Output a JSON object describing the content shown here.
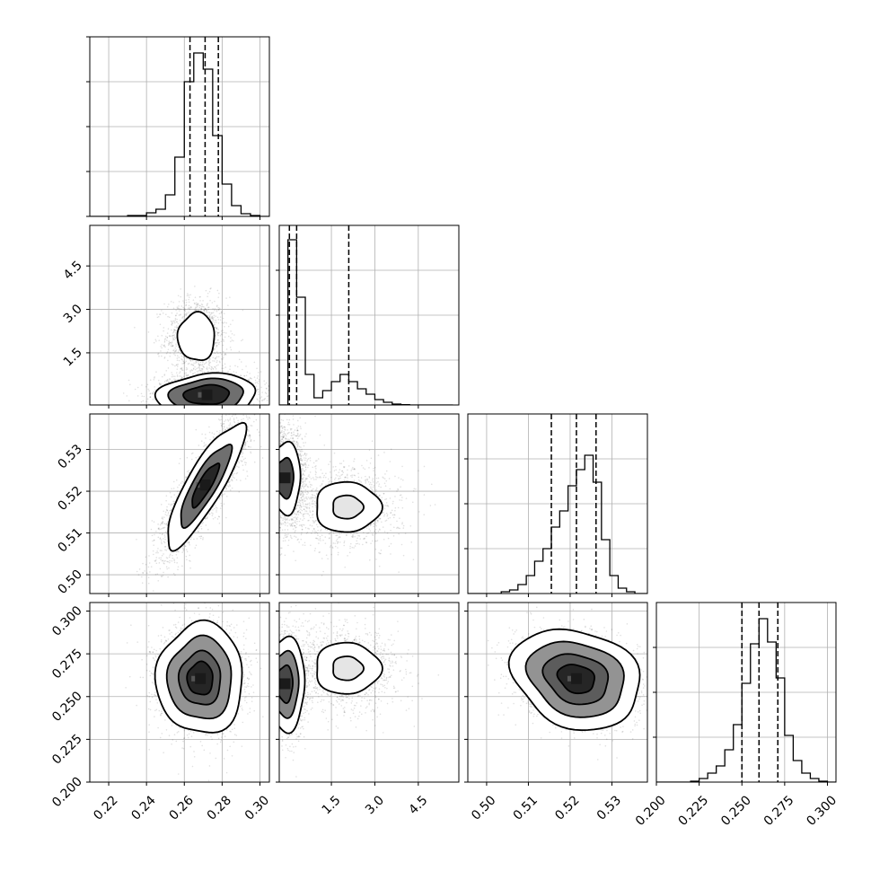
{
  "chart_data": {
    "type": "corner",
    "n_params": 4,
    "colors": {
      "axes": "#000000",
      "grid": "#b0b0b0",
      "contour": "#000000",
      "points": "#000000"
    },
    "grid": true,
    "quantiles_shown": [
      0.16,
      0.5,
      0.84
    ],
    "params": [
      {
        "index": 0,
        "range": [
          0.21,
          0.305
        ],
        "ticks": [
          0.22,
          0.24,
          0.26,
          0.28,
          0.3
        ],
        "tick_labels": [
          "0.22",
          "0.24",
          "0.26",
          "0.28",
          "0.30"
        ],
        "quantiles": [
          0.263,
          0.271,
          0.278
        ],
        "hist_bin_edges": [
          0.21,
          0.215,
          0.22,
          0.225,
          0.23,
          0.235,
          0.24,
          0.245,
          0.25,
          0.255,
          0.26,
          0.265,
          0.27,
          0.275,
          0.28,
          0.285,
          0.29,
          0.295,
          0.3,
          0.305
        ],
        "hist_heights": [
          0,
          0,
          0,
          0,
          0.005,
          0.005,
          0.02,
          0.04,
          0.12,
          0.33,
          0.75,
          0.91,
          0.82,
          0.45,
          0.18,
          0.06,
          0.015,
          0.005,
          0
        ]
      },
      {
        "index": 1,
        "range": [
          -0.3,
          5.9
        ],
        "ticks": [
          1.5,
          3.0,
          4.5
        ],
        "tick_labels": [
          "1.5",
          "3.0",
          "4.5"
        ],
        "quantiles": [
          0.05,
          0.3,
          2.1
        ],
        "hist_bin_edges": [
          -0.3,
          0.0,
          0.3,
          0.6,
          0.9,
          1.2,
          1.5,
          1.8,
          2.1,
          2.4,
          2.7,
          3.0,
          3.3,
          3.6,
          3.9,
          4.2,
          4.5,
          4.8,
          5.1,
          5.4,
          5.7
        ],
        "hist_heights": [
          0.0,
          0.92,
          0.6,
          0.17,
          0.04,
          0.08,
          0.13,
          0.17,
          0.13,
          0.09,
          0.06,
          0.03,
          0.015,
          0.005,
          0.002,
          0,
          0,
          0,
          0,
          0
        ]
      },
      {
        "index": 2,
        "range": [
          0.4955,
          0.5385
        ],
        "ticks": [
          0.5,
          0.51,
          0.52,
          0.53
        ],
        "tick_labels": [
          "0.50",
          "0.51",
          "0.52",
          "0.53"
        ],
        "quantiles": [
          0.5155,
          0.5215,
          0.5262
        ],
        "hist_bin_edges": [
          0.4955,
          0.4975,
          0.4995,
          0.5015,
          0.5035,
          0.5055,
          0.5075,
          0.5095,
          0.5115,
          0.5135,
          0.5155,
          0.5175,
          0.5195,
          0.5215,
          0.5235,
          0.5255,
          0.5275,
          0.5295,
          0.5315,
          0.5335,
          0.5355,
          0.5385
        ],
        "hist_heights": [
          0,
          0,
          0,
          0,
          0.01,
          0.02,
          0.05,
          0.1,
          0.18,
          0.25,
          0.37,
          0.46,
          0.6,
          0.69,
          0.77,
          0.62,
          0.3,
          0.1,
          0.03,
          0.01,
          0
        ]
      },
      {
        "index": 3,
        "range": [
          0.2,
          0.305
        ],
        "ticks": [
          0.2,
          0.225,
          0.25,
          0.275,
          0.3
        ],
        "tick_labels": [
          "0.200",
          "0.225",
          "0.250",
          "0.275",
          "0.300"
        ],
        "quantiles": [
          0.25,
          0.26,
          0.271
        ],
        "hist_bin_edges": [
          0.2,
          0.205,
          0.21,
          0.215,
          0.22,
          0.225,
          0.23,
          0.235,
          0.24,
          0.245,
          0.25,
          0.255,
          0.26,
          0.265,
          0.27,
          0.275,
          0.28,
          0.285,
          0.29,
          0.295,
          0.3,
          0.305
        ],
        "hist_heights": [
          0,
          0,
          0,
          0,
          0.005,
          0.02,
          0.05,
          0.09,
          0.18,
          0.32,
          0.55,
          0.77,
          0.91,
          0.78,
          0.58,
          0.26,
          0.12,
          0.05,
          0.02,
          0.005,
          0
        ]
      }
    ],
    "density_blobs": [
      {
        "pair": [
          1,
          0
        ],
        "center": [
          0.2665,
          2.05
        ],
        "sigma": [
          0.0065,
          0.55
        ],
        "rho": 0.0,
        "n": 1200,
        "levels": [
          1.5
        ],
        "peak_shade": 0.12
      },
      {
        "pair": [
          1,
          0
        ],
        "center": [
          0.272,
          0.05
        ],
        "sigma": [
          0.011,
          0.3
        ],
        "rho": 0.1,
        "n": 2200,
        "levels": [
          1.1,
          1.8,
          2.4
        ],
        "peak_shade": 1.0
      },
      {
        "pair": [
          2,
          0
        ],
        "center": [
          0.271,
          0.5215
        ],
        "sigma": [
          0.009,
          0.0065
        ],
        "rho": 0.85,
        "n": 3200,
        "levels": [
          0.8,
          1.5,
          2.3
        ],
        "peak_shade": 1.0
      },
      {
        "pair": [
          2,
          1
        ],
        "center": [
          2.05,
          0.5162
        ],
        "sigma": [
          0.75,
          0.004
        ],
        "rho": 0.0,
        "n": 1200,
        "levels": [
          0.7,
          1.5
        ],
        "peak_shade": 0.12
      },
      {
        "pair": [
          2,
          1
        ],
        "center": [
          -0.1,
          0.5232
        ],
        "sigma": [
          0.3,
          0.0048
        ],
        "rho": 0.0,
        "n": 2000,
        "levels": [
          1.0,
          1.8
        ],
        "peak_shade": 0.85
      },
      {
        "pair": [
          3,
          0
        ],
        "center": [
          0.2685,
          0.2605
        ],
        "sigma": [
          0.0085,
          0.012
        ],
        "rho": 0.0,
        "n": 3000,
        "levels": [
          0.8,
          1.3,
          2.0,
          2.7
        ],
        "peak_shade": 1.0
      },
      {
        "pair": [
          3,
          1
        ],
        "center": [
          2.05,
          0.2665
        ],
        "sigma": [
          0.75,
          0.01
        ],
        "rho": 0.0,
        "n": 1200,
        "levels": [
          0.7,
          1.5
        ],
        "peak_shade": 0.12
      },
      {
        "pair": [
          3,
          1
        ],
        "center": [
          -0.1,
          0.2575
        ],
        "sigma": [
          0.3,
          0.012
        ],
        "rho": 0.0,
        "n": 2000,
        "levels": [
          0.9,
          1.6,
          2.3
        ],
        "peak_shade": 0.85
      },
      {
        "pair": [
          3,
          2
        ],
        "center": [
          0.5215,
          0.2605
        ],
        "sigma": [
          0.0055,
          0.0105
        ],
        "rho": -0.2,
        "n": 3000,
        "levels": [
          0.8,
          1.4,
          2.1,
          2.8
        ],
        "peak_shade": 1.0
      }
    ]
  }
}
